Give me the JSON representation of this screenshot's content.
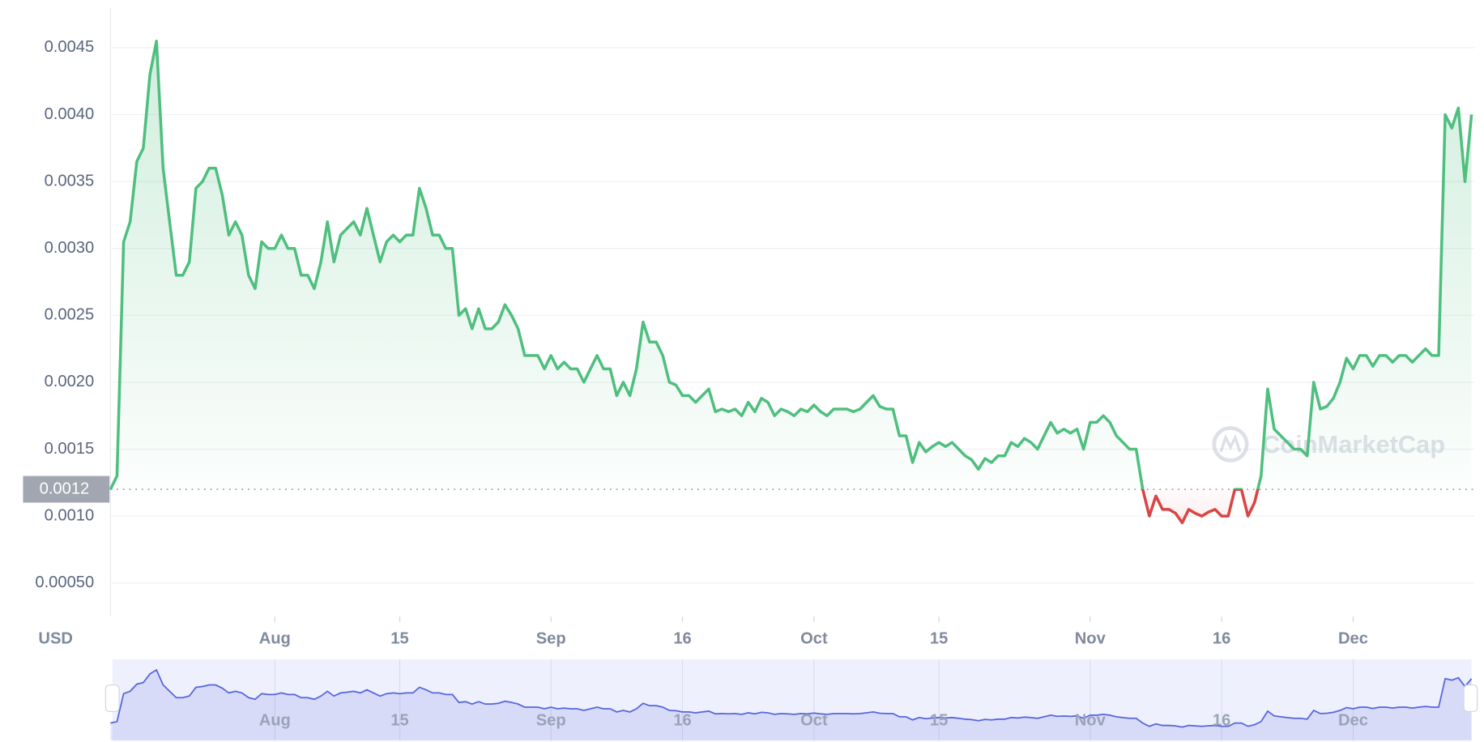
{
  "chart_data": {
    "type": "line",
    "currency_label": "USD",
    "watermark": "CoinMarketCap",
    "categories": [
      null,
      null,
      null,
      null,
      null,
      null,
      null,
      null,
      null,
      null,
      null,
      null,
      null,
      null,
      null,
      null,
      null,
      null,
      null,
      null,
      null,
      null,
      null,
      null,
      null,
      "Aug",
      null,
      null,
      null,
      null,
      null,
      null,
      null,
      null,
      null,
      null,
      null,
      null,
      null,
      null,
      null,
      null,
      null,
      null,
      "15",
      null,
      null,
      null,
      null,
      null,
      null,
      null,
      null,
      null,
      null,
      null,
      null,
      null,
      null,
      null,
      null,
      null,
      null,
      null,
      null,
      null,
      null,
      "Sep",
      null,
      null,
      null,
      null,
      null,
      null,
      null,
      null,
      null,
      null,
      null,
      null,
      null,
      null,
      null,
      null,
      null,
      null,
      null,
      "16",
      null,
      null,
      null,
      null,
      null,
      null,
      null,
      null,
      null,
      null,
      null,
      null,
      null,
      null,
      null,
      null,
      null,
      null,
      null,
      "Oct",
      null,
      null,
      null,
      null,
      null,
      null,
      null,
      null,
      null,
      null,
      null,
      null,
      null,
      null,
      null,
      null,
      null,
      null,
      "15",
      null,
      null,
      null,
      null,
      null,
      null,
      null,
      null,
      null,
      null,
      null,
      null,
      null,
      null,
      null,
      null,
      null,
      null,
      null,
      null,
      null,
      null,
      "Nov",
      null,
      null,
      null,
      null,
      null,
      null,
      null,
      null,
      null,
      null,
      null,
      null,
      null,
      null,
      null,
      null,
      null,
      null,
      null,
      "16",
      null,
      null,
      null,
      null,
      null,
      null,
      null,
      null,
      null,
      null,
      null,
      null,
      null,
      null,
      null,
      null,
      null,
      null,
      null,
      "Dec",
      null,
      null,
      null,
      null,
      null,
      null,
      null,
      null,
      null,
      null,
      null,
      null,
      null,
      null,
      null,
      null,
      null,
      null
    ],
    "values": [
      0.0012,
      0.0013,
      0.00305,
      0.0032,
      0.00365,
      0.00375,
      0.0043,
      0.00455,
      0.0036,
      0.0032,
      0.0028,
      0.0028,
      0.0029,
      0.00345,
      0.0035,
      0.0036,
      0.0036,
      0.0034,
      0.0031,
      0.0032,
      0.0031,
      0.0028,
      0.0027,
      0.00305,
      0.003,
      0.003,
      0.0031,
      0.003,
      0.003,
      0.0028,
      0.0028,
      0.0027,
      0.0029,
      0.0032,
      0.0029,
      0.0031,
      0.00315,
      0.0032,
      0.0031,
      0.0033,
      0.0031,
      0.0029,
      0.00305,
      0.0031,
      0.00305,
      0.0031,
      0.0031,
      0.00345,
      0.0033,
      0.0031,
      0.0031,
      0.003,
      0.003,
      0.0025,
      0.00255,
      0.0024,
      0.00255,
      0.0024,
      0.0024,
      0.00245,
      0.00258,
      0.0025,
      0.0024,
      0.0022,
      0.0022,
      0.0022,
      0.0021,
      0.0022,
      0.0021,
      0.00215,
      0.0021,
      0.0021,
      0.002,
      0.0021,
      0.0022,
      0.0021,
      0.0021,
      0.0019,
      0.002,
      0.0019,
      0.0021,
      0.00245,
      0.0023,
      0.0023,
      0.0022,
      0.002,
      0.00198,
      0.0019,
      0.0019,
      0.00185,
      0.0019,
      0.00195,
      0.00178,
      0.0018,
      0.00178,
      0.0018,
      0.00175,
      0.00185,
      0.00178,
      0.00188,
      0.00185,
      0.00175,
      0.0018,
      0.00178,
      0.00175,
      0.0018,
      0.00178,
      0.00183,
      0.00178,
      0.00175,
      0.0018,
      0.0018,
      0.0018,
      0.00178,
      0.0018,
      0.00185,
      0.0019,
      0.00182,
      0.0018,
      0.0018,
      0.0016,
      0.0016,
      0.0014,
      0.00155,
      0.00148,
      0.00152,
      0.00155,
      0.00152,
      0.00155,
      0.0015,
      0.00145,
      0.00142,
      0.00135,
      0.00143,
      0.0014,
      0.00145,
      0.00145,
      0.00155,
      0.00152,
      0.00158,
      0.00155,
      0.0015,
      0.0016,
      0.0017,
      0.00162,
      0.00165,
      0.00162,
      0.00165,
      0.0015,
      0.0017,
      0.0017,
      0.00175,
      0.0017,
      0.0016,
      0.00155,
      0.0015,
      0.0015,
      0.0012,
      0.001,
      0.00115,
      0.00105,
      0.00105,
      0.00102,
      0.00095,
      0.00105,
      0.00102,
      0.001,
      0.00103,
      0.00105,
      0.001,
      0.001,
      0.0012,
      0.0012,
      0.001,
      0.0011,
      0.0013,
      0.00195,
      0.00165,
      0.0016,
      0.00155,
      0.0015,
      0.0015,
      0.00145,
      0.002,
      0.0018,
      0.00182,
      0.00188,
      0.002,
      0.00218,
      0.0021,
      0.0022,
      0.0022,
      0.00212,
      0.0022,
      0.0022,
      0.00215,
      0.0022,
      0.0022,
      0.00215,
      0.0022,
      0.00225,
      0.0022,
      0.0022,
      0.004,
      0.0039,
      0.00405,
      0.0035,
      0.004
    ],
    "color": "#4fbf7f",
    "below_color": "#d94545",
    "navigator_color": "#5566dd",
    "reference_line": 0.0012,
    "ylim": [
      0.00025,
      0.0048
    ],
    "yticks": [
      {
        "value": 0.0005,
        "label": "0.00050"
      },
      {
        "value": 0.001,
        "label": "0.0010"
      },
      0.0015,
      {
        "value": 0.002,
        "label": "0.0020"
      },
      0.0025,
      {
        "value": 0.003,
        "label": "0.0030"
      },
      0.0035,
      {
        "value": 0.004,
        "label": "0.0040"
      },
      0.0045
    ],
    "grid": true
  }
}
